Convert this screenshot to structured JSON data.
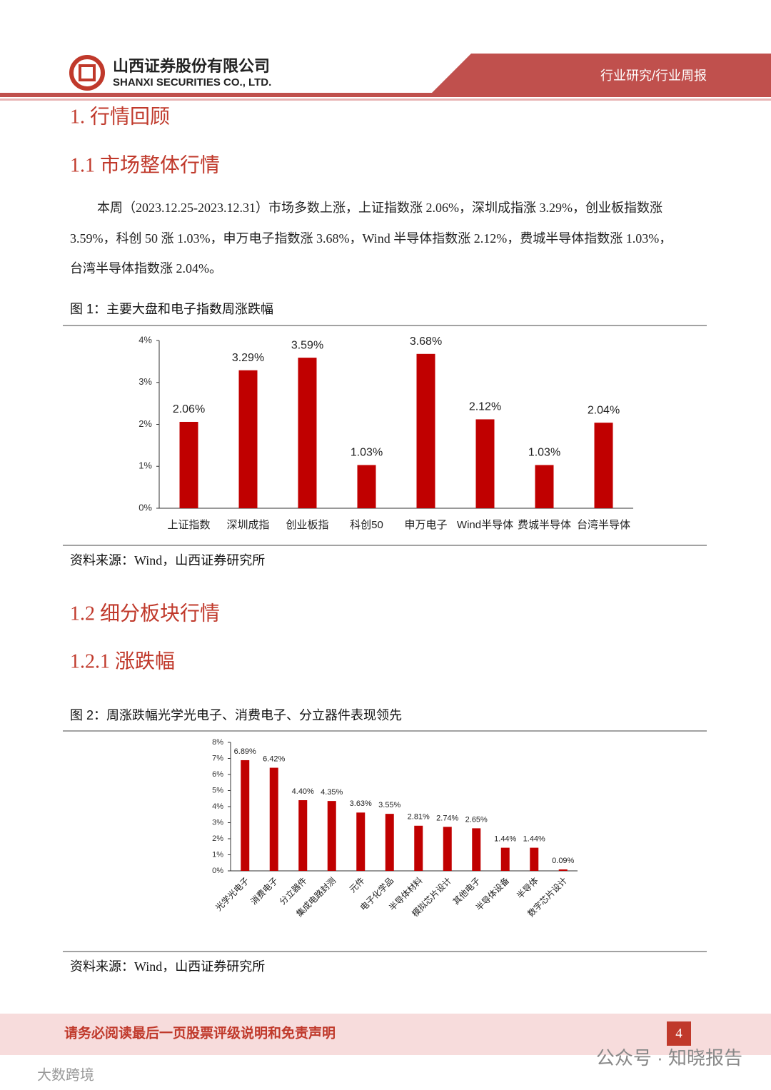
{
  "header": {
    "company_cn": "山西证券股份有限公司",
    "company_en": "SHANXI SECURITIES CO., LTD.",
    "tag": "行业研究/行业周报"
  },
  "sections": {
    "h1": "1. 行情回顾",
    "h1_1": "1.1 市场整体行情",
    "paragraph": [
      "本周（2023.12.25-2023.12.31）市场多数上涨，上证指数涨 2.06%，深圳成指涨 3.29%，创业板指数涨",
      "3.59%，科创 50 涨 1.03%，申万电子指数涨 3.68%，Wind 半导体指数涨 2.12%，费城半导体指数涨 1.03%，",
      "台湾半导体指数涨 2.04%。"
    ],
    "h1_2": "1.2 细分板块行情",
    "h1_2_1": "1.2.1 涨跌幅"
  },
  "figures": [
    {
      "caption": "图 1：主要大盘和电子指数周涨跌幅",
      "source": "资料来源：Wind，山西证券研究所"
    },
    {
      "caption": "图 2：周涨跌幅光学光电子、消费电子、分立器件表现领先",
      "source": "资料来源：Wind，山西证券研究所"
    }
  ],
  "chart_data": [
    {
      "type": "bar",
      "color": "#c00000",
      "categories": [
        "上证指数",
        "深圳成指",
        "创业板指",
        "科创50",
        "申万电子",
        "Wind半导体",
        "费城半导体",
        "台湾半导体"
      ],
      "values": [
        2.06,
        3.29,
        3.59,
        1.03,
        3.68,
        2.12,
        1.03,
        2.04
      ],
      "value_labels": [
        "2.06%",
        "3.29%",
        "3.59%",
        "1.03%",
        "3.68%",
        "2.12%",
        "1.03%",
        "2.04%"
      ],
      "ylim": [
        0,
        4
      ],
      "yticks": [
        {
          "value": 0,
          "label": "0%"
        },
        {
          "value": 1,
          "label": "1%"
        },
        {
          "value": 2,
          "label": "2%"
        },
        {
          "value": 3,
          "label": "3%"
        },
        {
          "value": 4,
          "label": "4%"
        }
      ]
    },
    {
      "type": "bar",
      "color": "#c00000",
      "categories": [
        "光学光电子",
        "消费电子",
        "分立器件",
        "集成电路封测",
        "元件",
        "电子化学品",
        "半导体材料",
        "模拟芯片设计",
        "其他电子",
        "半导体设备",
        "半导体",
        "数字芯片设计"
      ],
      "values": [
        6.89,
        6.42,
        4.4,
        4.35,
        3.63,
        3.55,
        2.81,
        2.74,
        2.65,
        1.44,
        1.44,
        0.09
      ],
      "value_labels": [
        "6.89%",
        "6.42%",
        "4.40%",
        "4.35%",
        "3.63%",
        "3.55%",
        "2.81%",
        "2.74%",
        "2.65%",
        "1.44%",
        "1.44%",
        "0.09%"
      ],
      "ylim": [
        0,
        8
      ],
      "yticks": [
        {
          "value": 0,
          "label": "0%"
        },
        {
          "value": 1,
          "label": "1%"
        },
        {
          "value": 2,
          "label": "2%"
        },
        {
          "value": 3,
          "label": "3%"
        },
        {
          "value": 4,
          "label": "4%"
        },
        {
          "value": 5,
          "label": "5%"
        },
        {
          "value": 6,
          "label": "6%"
        },
        {
          "value": 7,
          "label": "7%"
        },
        {
          "value": 8,
          "label": "8%"
        }
      ]
    }
  ],
  "footer": {
    "disclaimer": "请务必阅读最后一页股票评级说明和免责声明",
    "page": "4",
    "watermark_right": "公众号 · 知晓报告",
    "watermark_left": "大数跨境"
  }
}
